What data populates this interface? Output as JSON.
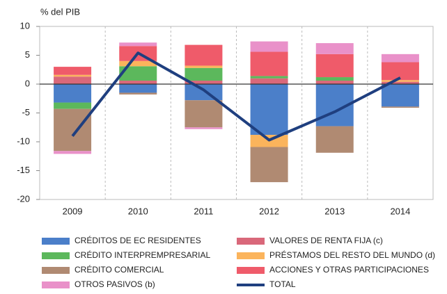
{
  "chart_data": {
    "type": "bar",
    "stacked": true,
    "y_label": "% del PIB",
    "categories": [
      "2009",
      "2010",
      "2011",
      "2012",
      "2013",
      "2014"
    ],
    "ylim": [
      -20,
      10
    ],
    "yticks": [
      10,
      5,
      0,
      -5,
      -10,
      -15,
      -20
    ],
    "series": [
      {
        "name": "CRÉDITOS DE EC RESIDENTES",
        "color": "#4b7fc9",
        "values": [
          -3.2,
          -1.5,
          -2.8,
          -8.8,
          -7.3,
          -3.9
        ]
      },
      {
        "name": "VALORES DE RENTA FIJA (c)",
        "color": "#d9687a",
        "values": [
          1.3,
          0.6,
          0.6,
          1.0,
          0.6,
          0.4
        ]
      },
      {
        "name": "CRÉDITO INTERPREMPRESARIAL",
        "color": "#5cb85c",
        "values": [
          -1.1,
          2.5,
          2.2,
          0.4,
          0.6,
          0
        ]
      },
      {
        "name": "PRÉSTAMOS DEL RESTO DEL MUNDO (d)",
        "color": "#fbb45c",
        "values": [
          0.3,
          0.9,
          0.4,
          -2.1,
          0,
          0.3
        ]
      },
      {
        "name": "CRÉDITO COMERCIAL",
        "color": "#b08a72",
        "values": [
          -7.3,
          -0.3,
          -4.7,
          -6.1,
          -4.6,
          -0.2
        ]
      },
      {
        "name": "ACCIONES Y OTRAS PARTICIPACIONES",
        "color": "#ef5b6a",
        "values": [
          1.4,
          2.6,
          3.6,
          4.2,
          4.0,
          3.1
        ]
      },
      {
        "name": "OTROS PASIVOS (b)",
        "color": "#e991c9",
        "values": [
          -0.5,
          0.6,
          -0.3,
          1.8,
          1.9,
          1.4
        ]
      },
      {
        "name": "TOTAL",
        "color": "#1f3f7f",
        "type": "line",
        "values": [
          -9.0,
          5.4,
          -1.0,
          -9.7,
          -4.8,
          1.1
        ]
      }
    ]
  }
}
